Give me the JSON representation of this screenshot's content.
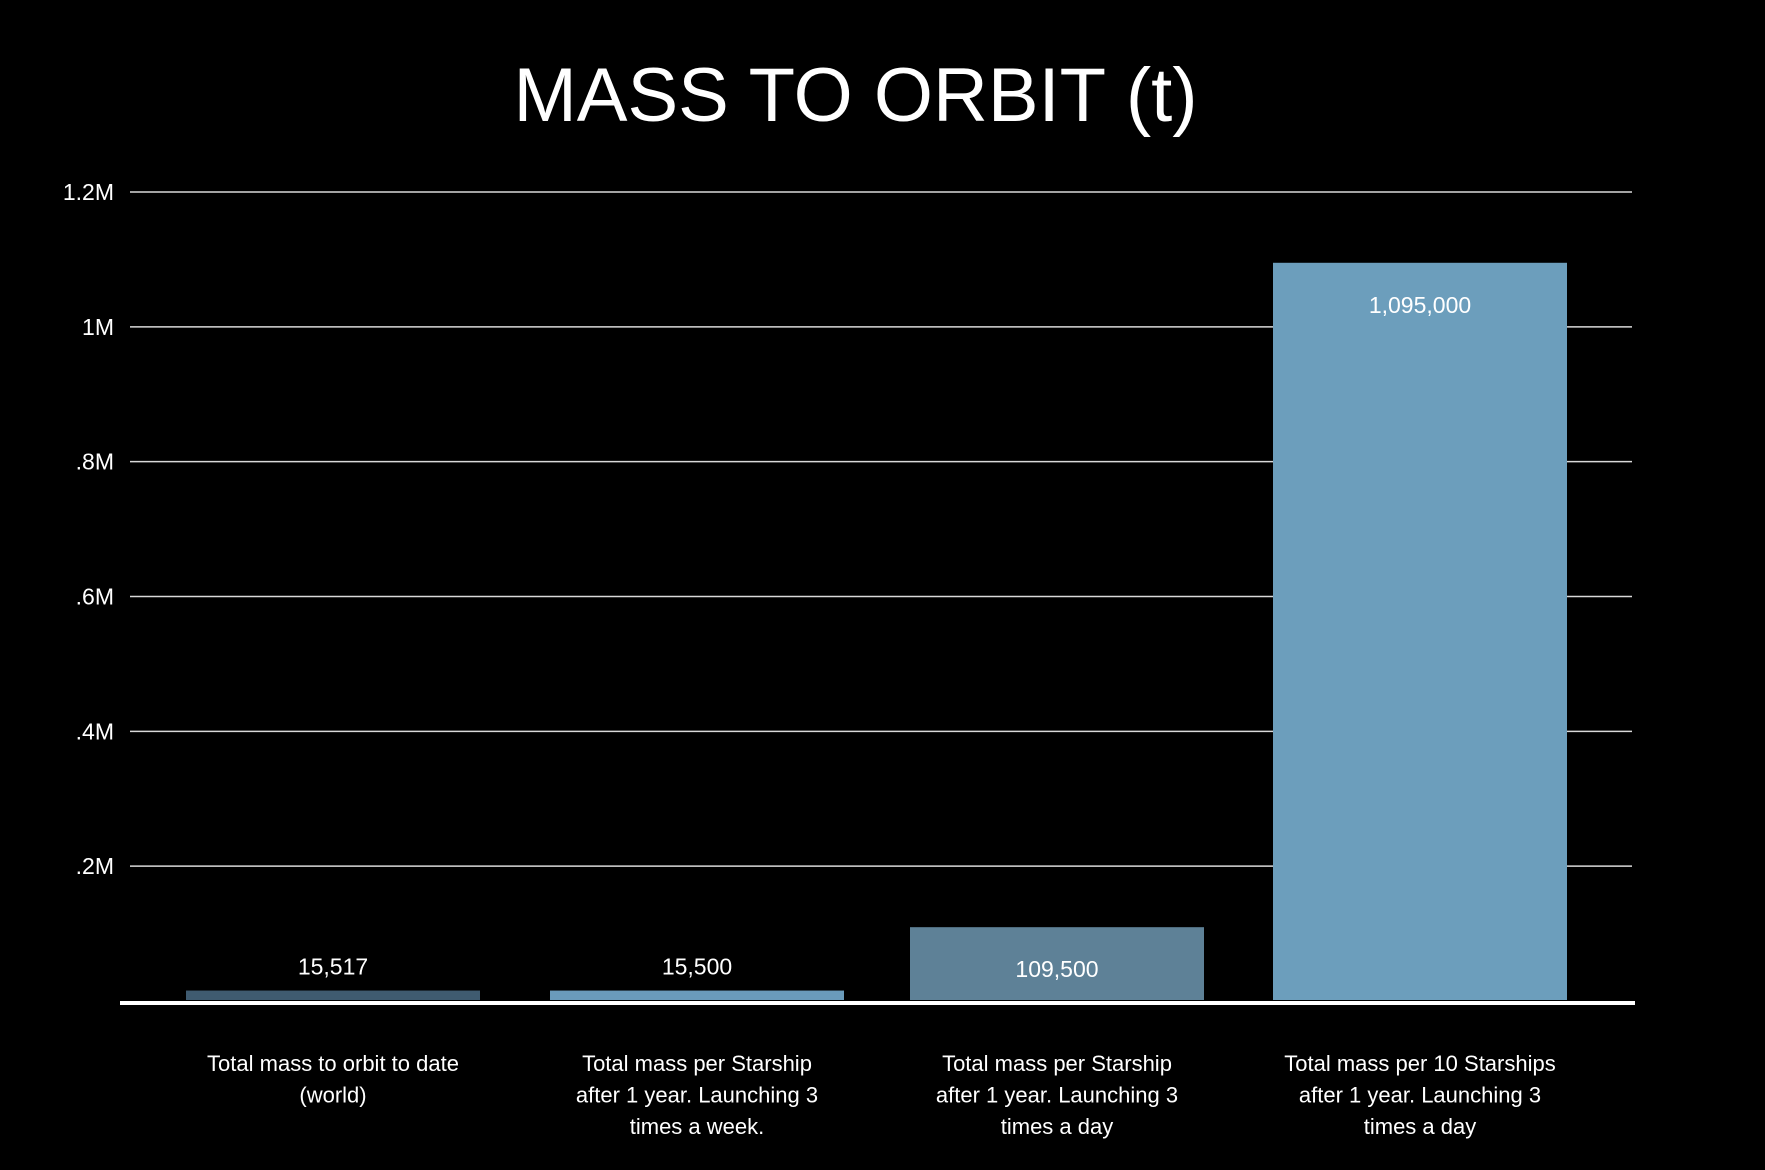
{
  "chart_data": {
    "type": "bar",
    "title": "MASS TO ORBIT (t)",
    "xlabel": "",
    "ylabel": "",
    "ylim": [
      0,
      1200000
    ],
    "grid": true,
    "y_ticks": [
      {
        "value": 200000,
        "label": ".2M"
      },
      {
        "value": 400000,
        "label": ".4M"
      },
      {
        "value": 600000,
        "label": ".6M"
      },
      {
        "value": 800000,
        "label": ".8M"
      },
      {
        "value": 1000000,
        "label": "1M"
      },
      {
        "value": 1200000,
        "label": "1.2M"
      }
    ],
    "categories": [
      [
        "Total mass to orbit to date",
        "(world)"
      ],
      [
        "Total mass per Starship",
        "after 1 year. Launching 3",
        "times a week."
      ],
      [
        "Total mass per Starship",
        "after 1 year. Launching 3",
        "times a day"
      ],
      [
        "Total mass per 10 Starships",
        "after 1 year. Launching 3",
        "times a day"
      ]
    ],
    "values": [
      15517,
      15500,
      109500,
      1095000
    ],
    "data_labels": [
      "15,517",
      "15,500",
      "109,500",
      "1,095,000"
    ],
    "bar_colors": [
      "#3f5b70",
      "#6a9bbb",
      "#5e8197",
      "#6c9ebc"
    ],
    "colors": {
      "background": "#000000",
      "text": "#ffffff",
      "gridline": "#d9d9d9",
      "baseline": "#ffffff"
    }
  }
}
